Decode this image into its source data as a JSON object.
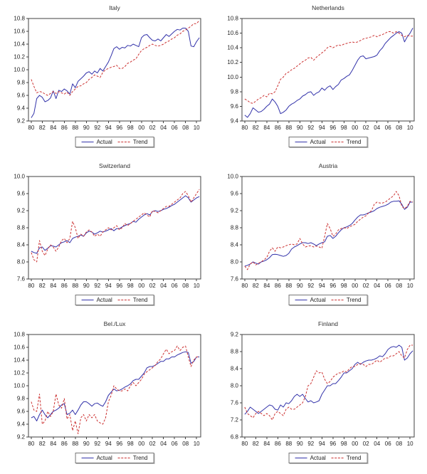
{
  "colors": {
    "actual": "#3333aa",
    "trend": "#cc3333",
    "axis": "#404040",
    "text": "#222222"
  },
  "chart_data": [
    {
      "type": "line",
      "title": "Italy",
      "ylim": [
        9.2,
        10.8
      ],
      "ytick_step": 0.2,
      "xlim": [
        1979.5,
        2010.75
      ],
      "xticks": [
        1980,
        1982,
        1984,
        1986,
        1988,
        1990,
        1992,
        1994,
        1996,
        1998,
        2000,
        2002,
        2004,
        2006,
        2008,
        2010
      ],
      "xtick_labels": [
        "80",
        "82",
        "84",
        "86",
        "88",
        "90",
        "92",
        "94",
        "96",
        "98",
        "00",
        "02",
        "04",
        "06",
        "08",
        "10"
      ],
      "x_start": 1980,
      "x_step": 0.5,
      "series": [
        {
          "name": "Actual",
          "style": "solid",
          "color_key": "actual",
          "values": [
            9.25,
            9.32,
            9.55,
            9.6,
            9.57,
            9.5,
            9.52,
            9.56,
            9.67,
            9.55,
            9.68,
            9.66,
            9.7,
            9.67,
            9.62,
            9.78,
            9.72,
            9.82,
            9.86,
            9.9,
            9.95,
            9.97,
            9.93,
            9.98,
            9.95,
            10.02,
            9.98,
            10.05,
            10.12,
            10.22,
            10.33,
            10.36,
            10.32,
            10.35,
            10.34,
            10.38,
            10.37,
            10.4,
            10.38,
            10.36,
            10.5,
            10.54,
            10.55,
            10.5,
            10.46,
            10.45,
            10.48,
            10.45,
            10.5,
            10.55,
            10.52,
            10.56,
            10.6,
            10.63,
            10.62,
            10.65,
            10.65,
            10.6,
            10.37,
            10.36,
            10.44,
            10.5
          ]
        },
        {
          "name": "Trend",
          "style": "dashed",
          "color_key": "trend",
          "values": [
            9.85,
            9.74,
            9.64,
            9.66,
            9.65,
            9.62,
            9.6,
            9.63,
            9.66,
            9.63,
            9.66,
            9.64,
            9.62,
            9.65,
            9.6,
            9.66,
            9.7,
            9.74,
            9.75,
            9.78,
            9.8,
            9.85,
            9.88,
            9.92,
            9.9,
            9.88,
            9.96,
            10.0,
            10.02,
            10.04,
            10.05,
            10.07,
            10.02,
            10.02,
            10.05,
            10.1,
            10.12,
            10.15,
            10.17,
            10.24,
            10.3,
            10.33,
            10.35,
            10.38,
            10.4,
            10.38,
            10.37,
            10.38,
            10.4,
            10.43,
            10.45,
            10.48,
            10.5,
            10.54,
            10.56,
            10.6,
            10.62,
            10.65,
            10.68,
            10.72,
            10.72,
            10.77
          ]
        }
      ]
    },
    {
      "type": "line",
      "title": "Netherlands",
      "ylim": [
        9.4,
        10.8
      ],
      "ytick_step": 0.2,
      "xlim": [
        1979.5,
        2010.75
      ],
      "xticks": [
        1980,
        1982,
        1984,
        1986,
        1988,
        1990,
        1992,
        1994,
        1996,
        1998,
        2000,
        2002,
        2004,
        2006,
        2008,
        2010
      ],
      "xtick_labels": [
        "80",
        "82",
        "84",
        "86",
        "88",
        "90",
        "92",
        "94",
        "96",
        "98",
        "00",
        "02",
        "04",
        "06",
        "08",
        "10"
      ],
      "x_start": 1980,
      "x_step": 0.5,
      "series": [
        {
          "name": "Actual",
          "style": "solid",
          "color_key": "actual",
          "values": [
            9.48,
            9.45,
            9.5,
            9.58,
            9.55,
            9.52,
            9.53,
            9.56,
            9.6,
            9.63,
            9.7,
            9.66,
            9.6,
            9.5,
            9.52,
            9.55,
            9.6,
            9.63,
            9.65,
            9.68,
            9.7,
            9.74,
            9.76,
            9.79,
            9.8,
            9.75,
            9.78,
            9.8,
            9.85,
            9.82,
            9.86,
            9.88,
            9.83,
            9.87,
            9.9,
            9.96,
            9.98,
            10.01,
            10.03,
            10.09,
            10.16,
            10.23,
            10.28,
            10.29,
            10.25,
            10.26,
            10.27,
            10.28,
            10.3,
            10.36,
            10.4,
            10.46,
            10.5,
            10.54,
            10.57,
            10.6,
            10.62,
            10.6,
            10.48,
            10.55,
            10.6,
            10.67
          ]
        },
        {
          "name": "Trend",
          "style": "dashed",
          "color_key": "trend",
          "values": [
            9.7,
            9.68,
            9.65,
            9.64,
            9.67,
            9.7,
            9.72,
            9.75,
            9.73,
            9.78,
            9.77,
            9.8,
            9.88,
            9.97,
            10.0,
            10.05,
            10.07,
            10.1,
            10.12,
            10.15,
            10.18,
            10.21,
            10.23,
            10.26,
            10.27,
            10.23,
            10.27,
            10.3,
            10.33,
            10.36,
            10.4,
            10.42,
            10.4,
            10.42,
            10.44,
            10.43,
            10.45,
            10.46,
            10.47,
            10.48,
            10.47,
            10.48,
            10.5,
            10.52,
            10.53,
            10.54,
            10.55,
            10.57,
            10.55,
            10.57,
            10.58,
            10.6,
            10.62,
            10.62,
            10.6,
            10.62,
            10.6,
            10.57,
            10.55,
            10.57,
            10.56,
            10.56
          ]
        }
      ]
    },
    {
      "type": "line",
      "title": "Switzerland",
      "ylim": [
        7.6,
        10.0
      ],
      "ytick_step": 0.4,
      "xlim": [
        1979.5,
        2010.75
      ],
      "xticks": [
        1980,
        1982,
        1984,
        1986,
        1988,
        1990,
        1992,
        1994,
        1996,
        1998,
        2000,
        2002,
        2004,
        2006,
        2008,
        2010
      ],
      "xtick_labels": [
        "80",
        "82",
        "84",
        "86",
        "88",
        "90",
        "92",
        "94",
        "96",
        "98",
        "00",
        "02",
        "04",
        "06",
        "08",
        "10"
      ],
      "x_start": 1980,
      "x_step": 0.5,
      "series": [
        {
          "name": "Actual",
          "style": "solid",
          "color_key": "actual",
          "values": [
            8.25,
            8.22,
            8.2,
            8.33,
            8.35,
            8.27,
            8.32,
            8.38,
            8.37,
            8.35,
            8.4,
            8.45,
            8.47,
            8.5,
            8.45,
            8.55,
            8.58,
            8.6,
            8.63,
            8.6,
            8.68,
            8.72,
            8.7,
            8.65,
            8.68,
            8.72,
            8.7,
            8.72,
            8.75,
            8.78,
            8.73,
            8.78,
            8.78,
            8.82,
            8.85,
            8.88,
            8.9,
            8.95,
            8.93,
            9.0,
            9.05,
            9.1,
            9.13,
            9.1,
            9.18,
            9.2,
            9.18,
            9.2,
            9.23,
            9.25,
            9.28,
            9.32,
            9.35,
            9.4,
            9.45,
            9.5,
            9.55,
            9.5,
            9.4,
            9.45,
            9.5,
            9.53
          ]
        },
        {
          "name": "Trend",
          "style": "dashed",
          "color_key": "trend",
          "values": [
            8.22,
            8.05,
            8.0,
            8.5,
            8.25,
            8.15,
            8.3,
            8.4,
            8.35,
            8.25,
            8.35,
            8.5,
            8.55,
            8.45,
            8.55,
            8.95,
            8.8,
            8.55,
            8.65,
            8.6,
            8.7,
            8.75,
            8.7,
            8.6,
            8.65,
            8.6,
            8.7,
            8.75,
            8.8,
            8.75,
            8.8,
            8.85,
            8.75,
            8.8,
            8.9,
            8.85,
            8.9,
            8.95,
            9.0,
            9.05,
            9.1,
            9.15,
            9.1,
            9.05,
            9.2,
            9.18,
            9.15,
            9.2,
            9.25,
            9.3,
            9.3,
            9.35,
            9.4,
            9.45,
            9.5,
            9.6,
            9.65,
            9.55,
            9.4,
            9.5,
            9.6,
            9.7
          ]
        }
      ]
    },
    {
      "type": "line",
      "title": "Austria",
      "ylim": [
        7.6,
        10.0
      ],
      "ytick_step": 0.4,
      "xlim": [
        1979.5,
        2010.75
      ],
      "xticks": [
        1980,
        1982,
        1984,
        1986,
        1988,
        1990,
        1992,
        1994,
        1996,
        1998,
        2000,
        2002,
        2004,
        2006,
        2008,
        2010
      ],
      "xtick_labels": [
        "80",
        "82",
        "84",
        "86",
        "88",
        "90",
        "92",
        "94",
        "96",
        "98",
        "00",
        "02",
        "04",
        "06",
        "08",
        "10"
      ],
      "x_start": 1980,
      "x_step": 0.5,
      "series": [
        {
          "name": "Actual",
          "style": "solid",
          "color_key": "actual",
          "values": [
            7.9,
            7.92,
            7.95,
            8.0,
            7.97,
            7.95,
            8.0,
            8.02,
            8.05,
            8.1,
            8.17,
            8.18,
            8.17,
            8.15,
            8.13,
            8.15,
            8.2,
            8.3,
            8.35,
            8.38,
            8.42,
            8.45,
            8.45,
            8.43,
            8.45,
            8.42,
            8.38,
            8.42,
            8.45,
            8.47,
            8.6,
            8.62,
            8.55,
            8.6,
            8.68,
            8.75,
            8.8,
            8.82,
            8.85,
            8.9,
            8.98,
            9.05,
            9.1,
            9.1,
            9.12,
            9.15,
            9.17,
            9.2,
            9.25,
            9.28,
            9.3,
            9.32,
            9.35,
            9.4,
            9.42,
            9.42,
            9.43,
            9.35,
            9.23,
            9.28,
            9.4,
            9.4
          ]
        },
        {
          "name": "Trend",
          "style": "dashed",
          "color_key": "trend",
          "values": [
            7.9,
            7.82,
            7.95,
            8.0,
            7.93,
            7.97,
            8.0,
            8.05,
            8.1,
            8.25,
            8.33,
            8.25,
            8.35,
            8.33,
            8.35,
            8.38,
            8.4,
            8.42,
            8.4,
            8.42,
            8.55,
            8.42,
            8.35,
            8.37,
            8.38,
            8.35,
            8.37,
            8.35,
            8.32,
            8.6,
            8.9,
            8.78,
            8.6,
            8.65,
            8.75,
            8.78,
            8.8,
            8.78,
            8.82,
            8.85,
            8.88,
            8.95,
            9.0,
            9.05,
            9.08,
            9.15,
            9.2,
            9.35,
            9.4,
            9.38,
            9.38,
            9.4,
            9.45,
            9.5,
            9.55,
            9.65,
            9.55,
            9.3,
            9.25,
            9.3,
            9.42,
            9.4
          ]
        }
      ]
    },
    {
      "type": "line",
      "title": "Bel./Lux",
      "ylim": [
        9.2,
        10.8
      ],
      "ytick_step": 0.2,
      "xlim": [
        1979.5,
        2010.75
      ],
      "xticks": [
        1980,
        1982,
        1984,
        1986,
        1988,
        1990,
        1992,
        1994,
        1996,
        1998,
        2000,
        2002,
        2004,
        2006,
        2008,
        2010
      ],
      "xtick_labels": [
        "80",
        "82",
        "84",
        "86",
        "88",
        "90",
        "92",
        "94",
        "96",
        "98",
        "00",
        "02",
        "04",
        "06",
        "08",
        "10"
      ],
      "x_start": 1980,
      "x_step": 0.5,
      "series": [
        {
          "name": "Actual",
          "style": "solid",
          "color_key": "actual",
          "values": [
            9.5,
            9.52,
            9.45,
            9.55,
            9.62,
            9.55,
            9.5,
            9.55,
            9.6,
            9.62,
            9.65,
            9.7,
            9.72,
            9.55,
            9.57,
            9.62,
            9.55,
            9.62,
            9.7,
            9.75,
            9.75,
            9.72,
            9.68,
            9.72,
            9.73,
            9.7,
            9.68,
            9.75,
            9.85,
            9.9,
            9.95,
            9.92,
            9.93,
            9.95,
            9.98,
            10.0,
            10.03,
            10.08,
            10.1,
            10.1,
            10.15,
            10.2,
            10.28,
            10.3,
            10.3,
            10.32,
            10.35,
            10.38,
            10.38,
            10.42,
            10.42,
            10.45,
            10.45,
            10.48,
            10.5,
            10.52,
            10.53,
            10.52,
            10.35,
            10.38,
            10.45,
            10.45
          ]
        },
        {
          "name": "Trend",
          "style": "dashed",
          "color_key": "trend",
          "values": [
            9.75,
            9.62,
            9.6,
            9.87,
            9.4,
            9.45,
            9.6,
            9.52,
            9.6,
            9.87,
            9.7,
            9.65,
            9.8,
            9.48,
            9.55,
            9.3,
            9.45,
            9.25,
            9.5,
            9.55,
            9.45,
            9.55,
            9.5,
            9.55,
            9.45,
            9.42,
            9.4,
            9.5,
            9.75,
            9.85,
            10.0,
            9.95,
            9.92,
            9.92,
            9.95,
            9.92,
            10.0,
            10.05,
            10.0,
            10.05,
            10.1,
            10.18,
            10.22,
            10.25,
            10.28,
            10.32,
            10.38,
            10.42,
            10.5,
            10.57,
            10.5,
            10.53,
            10.55,
            10.62,
            10.55,
            10.6,
            10.62,
            10.45,
            10.3,
            10.4,
            10.45,
            10.45
          ]
        }
      ]
    },
    {
      "type": "line",
      "title": "Finland",
      "ylim": [
        6.8,
        9.2
      ],
      "ytick_step": 0.4,
      "xlim": [
        1979.5,
        2010.75
      ],
      "xticks": [
        1980,
        1982,
        1984,
        1986,
        1988,
        1990,
        1992,
        1994,
        1996,
        1998,
        2000,
        2002,
        2004,
        2006,
        2008,
        2010
      ],
      "xtick_labels": [
        "80",
        "82",
        "84",
        "86",
        "88",
        "90",
        "92",
        "94",
        "96",
        "98",
        "00",
        "02",
        "04",
        "06",
        "08",
        "10"
      ],
      "x_start": 1980,
      "x_step": 0.5,
      "series": [
        {
          "name": "Actual",
          "style": "solid",
          "color_key": "actual",
          "values": [
            7.33,
            7.4,
            7.5,
            7.45,
            7.4,
            7.35,
            7.4,
            7.45,
            7.5,
            7.55,
            7.53,
            7.45,
            7.43,
            7.55,
            7.5,
            7.6,
            7.58,
            7.65,
            7.75,
            7.8,
            7.75,
            7.8,
            7.7,
            7.62,
            7.65,
            7.6,
            7.62,
            7.65,
            7.8,
            7.9,
            8.0,
            8.0,
            8.05,
            8.05,
            8.12,
            8.2,
            8.3,
            8.3,
            8.35,
            8.4,
            8.5,
            8.55,
            8.5,
            8.55,
            8.58,
            8.6,
            8.6,
            8.62,
            8.65,
            8.7,
            8.68,
            8.75,
            8.85,
            8.9,
            8.92,
            8.9,
            8.95,
            8.9,
            8.6,
            8.65,
            8.75,
            8.82
          ]
        },
        {
          "name": "Trend",
          "style": "dashed",
          "color_key": "trend",
          "values": [
            7.5,
            7.35,
            7.3,
            7.25,
            7.35,
            7.4,
            7.35,
            7.3,
            7.35,
            7.3,
            7.2,
            7.35,
            7.4,
            7.35,
            7.3,
            7.45,
            7.5,
            7.45,
            7.45,
            7.5,
            7.55,
            7.6,
            7.75,
            8.0,
            8.05,
            8.2,
            8.35,
            8.3,
            8.32,
            8.15,
            8.05,
            8.1,
            8.2,
            8.25,
            8.3,
            8.3,
            8.35,
            8.32,
            8.4,
            8.45,
            8.45,
            8.5,
            8.52,
            8.5,
            8.45,
            8.5,
            8.5,
            8.55,
            8.6,
            8.55,
            8.6,
            8.65,
            8.65,
            8.7,
            8.7,
            8.75,
            8.8,
            8.7,
            8.65,
            8.85,
            8.95,
            8.95
          ]
        }
      ]
    }
  ]
}
